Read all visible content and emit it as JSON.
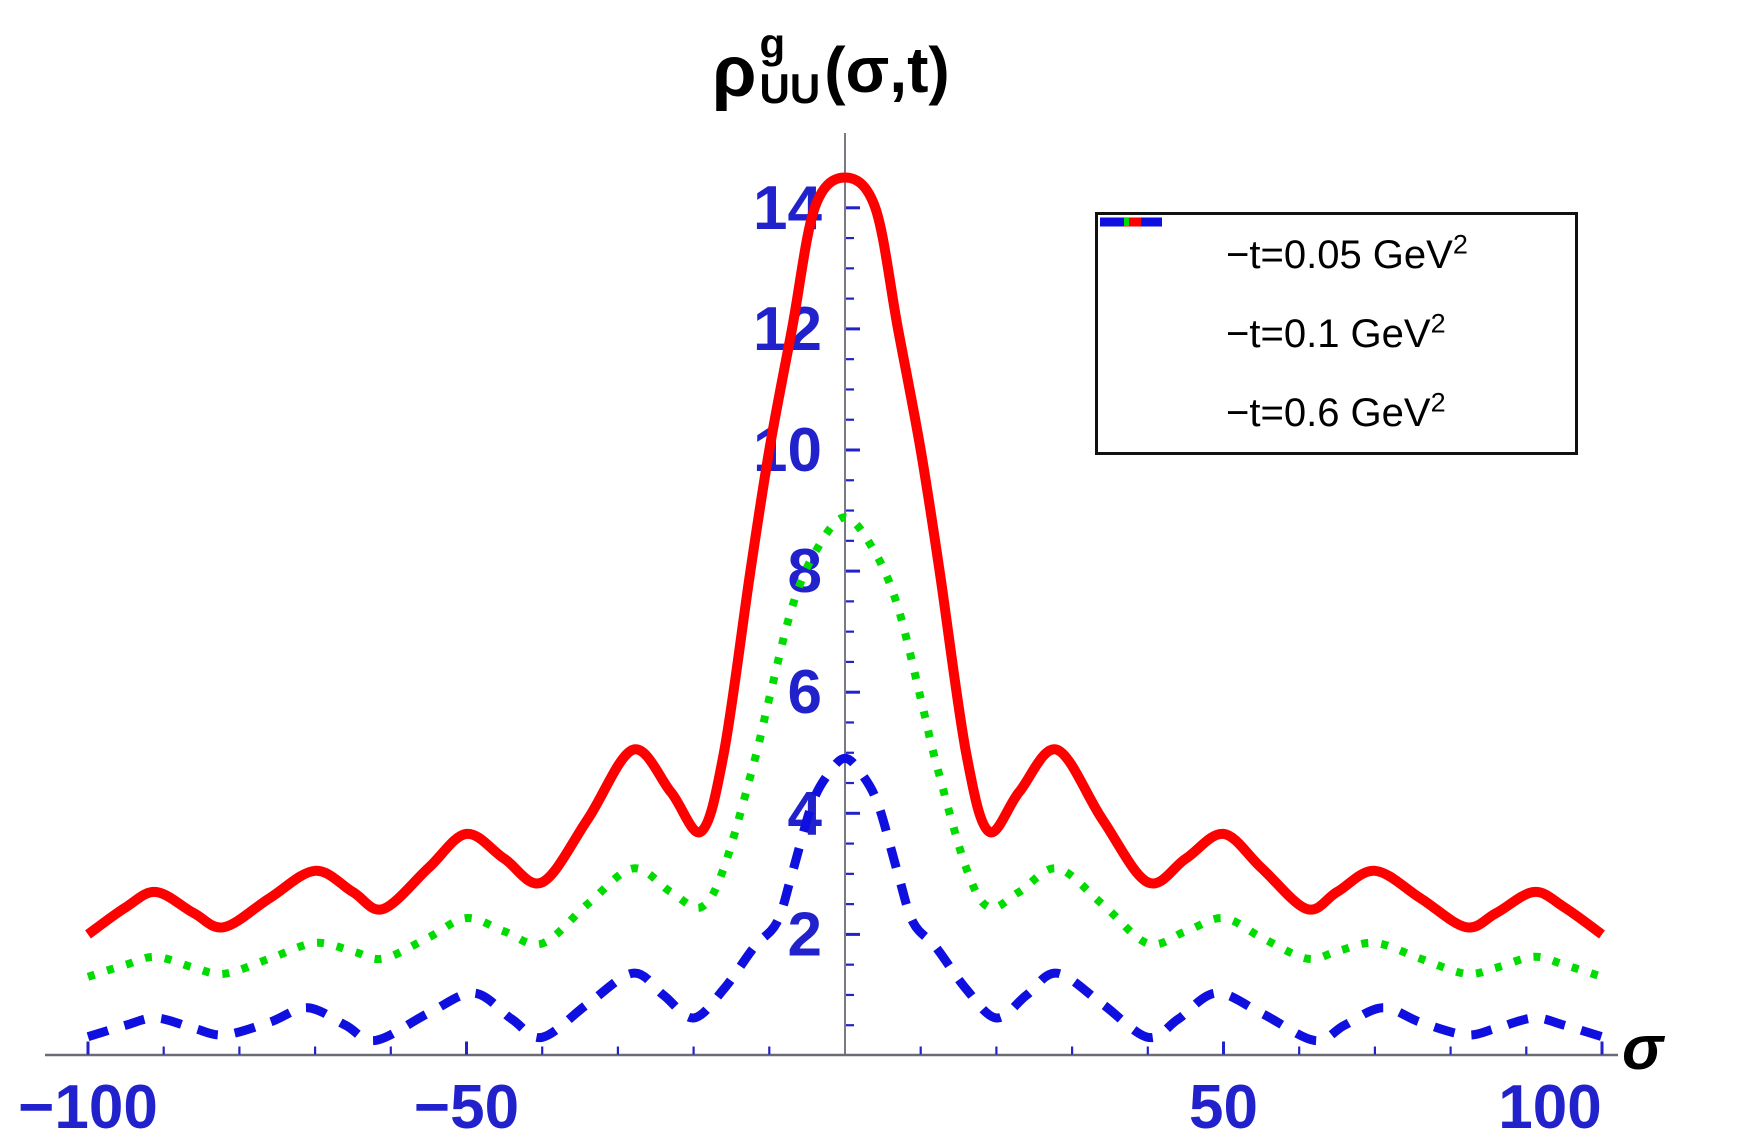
{
  "title": {
    "rho": "ρ",
    "superscript": "g",
    "subscript": "UU",
    "args": "(σ,t)"
  },
  "colors": {
    "red_curve": "#FF0000",
    "green_curve": "#00DC00",
    "blue_curve": "#0F0FE0",
    "tick_label_blue": "#2222CC",
    "axis_gray": "#6b6b74",
    "title_black": "#000000",
    "legend_border": "#111111"
  },
  "legend": {
    "items": [
      {
        "label": "−t=0.05 GeV",
        "sup": "2",
        "color": "#FF0000",
        "style": "solid"
      },
      {
        "label": "−t=0.1 GeV",
        "sup": "2",
        "color": "#00DC00",
        "style": "dotted"
      },
      {
        "label": "−t=0.6 GeV",
        "sup": "2",
        "color": "#0F0FE0",
        "style": "dashed"
      }
    ]
  },
  "chart_data": {
    "type": "line",
    "title": "ρ_UU^g(σ,t)",
    "xlabel": "σ",
    "ylabel": "",
    "xlim": [
      -100,
      100
    ],
    "ylim": [
      0,
      15.2
    ],
    "grid": false,
    "legend_position": "upper right",
    "x_tick_step": 10,
    "x_tick_labels": [
      {
        "text": "−100",
        "sigma": -100,
        "dx": 0
      },
      {
        "text": "−50",
        "sigma": -50,
        "dx": 0
      },
      {
        "text": "50",
        "sigma": 50,
        "dx": 0
      },
      {
        "text": "100",
        "sigma": 100,
        "dx": -52
      }
    ],
    "y_major_ticks": [
      2,
      4,
      6,
      8,
      10,
      12,
      14
    ],
    "y_minor_step": 0.5,
    "series": [
      {
        "name": "−t=0.05 GeV^2",
        "color": "#FF0000",
        "style": "solid",
        "peak": 14.5,
        "points": [
          [
            -100,
            2.0
          ],
          [
            -95,
            2.45
          ],
          [
            -91,
            2.7
          ],
          [
            -86,
            2.35
          ],
          [
            -82,
            2.12
          ],
          [
            -76,
            2.6
          ],
          [
            -70,
            3.05
          ],
          [
            -65,
            2.7
          ],
          [
            -61,
            2.42
          ],
          [
            -55,
            3.1
          ],
          [
            -50,
            3.66
          ],
          [
            -45,
            3.25
          ],
          [
            -40,
            2.86
          ],
          [
            -34,
            3.9
          ],
          [
            -28,
            5.05
          ],
          [
            -23,
            4.35
          ],
          [
            -19,
            3.7
          ],
          [
            -16,
            5.0
          ],
          [
            -12.5,
            8.0
          ],
          [
            -10,
            10.0
          ],
          [
            -7,
            12.0
          ],
          [
            -4,
            14.0
          ],
          [
            0,
            14.5
          ],
          [
            4,
            14.0
          ],
          [
            7,
            12.0
          ],
          [
            10,
            10.0
          ],
          [
            12.5,
            8.0
          ],
          [
            16,
            5.0
          ],
          [
            19,
            3.7
          ],
          [
            23,
            4.35
          ],
          [
            28,
            5.05
          ],
          [
            34,
            3.9
          ],
          [
            40,
            2.86
          ],
          [
            45,
            3.25
          ],
          [
            50,
            3.66
          ],
          [
            55,
            3.1
          ],
          [
            61,
            2.42
          ],
          [
            65,
            2.7
          ],
          [
            70,
            3.05
          ],
          [
            76,
            2.6
          ],
          [
            82,
            2.12
          ],
          [
            86,
            2.35
          ],
          [
            91,
            2.7
          ],
          [
            95,
            2.45
          ],
          [
            100,
            2.0
          ]
        ]
      },
      {
        "name": "−t=0.1 GeV^2",
        "color": "#00DC00",
        "style": "dotted",
        "peak": 8.89,
        "points": [
          [
            -100,
            1.3
          ],
          [
            -95,
            1.5
          ],
          [
            -91,
            1.63
          ],
          [
            -86,
            1.45
          ],
          [
            -82,
            1.35
          ],
          [
            -76,
            1.6
          ],
          [
            -70,
            1.86
          ],
          [
            -65,
            1.72
          ],
          [
            -61,
            1.6
          ],
          [
            -55,
            1.95
          ],
          [
            -50,
            2.27
          ],
          [
            -45,
            2.05
          ],
          [
            -40,
            1.85
          ],
          [
            -34,
            2.5
          ],
          [
            -28,
            3.09
          ],
          [
            -23,
            2.7
          ],
          [
            -19,
            2.45
          ],
          [
            -16,
            3.1
          ],
          [
            -12,
            4.85
          ],
          [
            -10,
            5.9
          ],
          [
            -7,
            7.4
          ],
          [
            -4,
            8.3
          ],
          [
            0,
            8.89
          ],
          [
            4,
            8.3
          ],
          [
            7,
            7.4
          ],
          [
            10,
            5.9
          ],
          [
            12,
            4.85
          ],
          [
            16,
            3.1
          ],
          [
            19,
            2.45
          ],
          [
            23,
            2.7
          ],
          [
            28,
            3.09
          ],
          [
            34,
            2.5
          ],
          [
            40,
            1.85
          ],
          [
            45,
            2.05
          ],
          [
            50,
            2.27
          ],
          [
            55,
            1.95
          ],
          [
            61,
            1.6
          ],
          [
            65,
            1.72
          ],
          [
            70,
            1.86
          ],
          [
            76,
            1.6
          ],
          [
            82,
            1.35
          ],
          [
            86,
            1.45
          ],
          [
            91,
            1.63
          ],
          [
            95,
            1.5
          ],
          [
            100,
            1.3
          ]
        ]
      },
      {
        "name": "−t=0.6 GeV^2",
        "color": "#0F0FE0",
        "style": "dashed",
        "peak": 4.91,
        "points": [
          [
            -100,
            0.31
          ],
          [
            -95,
            0.5
          ],
          [
            -91,
            0.62
          ],
          [
            -86,
            0.45
          ],
          [
            -82,
            0.34
          ],
          [
            -76,
            0.55
          ],
          [
            -71,
            0.79
          ],
          [
            -66,
            0.5
          ],
          [
            -62,
            0.25
          ],
          [
            -55,
            0.7
          ],
          [
            -49,
            1.03
          ],
          [
            -44,
            0.6
          ],
          [
            -40,
            0.3
          ],
          [
            -34,
            0.85
          ],
          [
            -28,
            1.36
          ],
          [
            -24,
            1.0
          ],
          [
            -20,
            0.62
          ],
          [
            -16,
            1.1
          ],
          [
            -12,
            1.79
          ],
          [
            -9,
            2.2
          ],
          [
            -7,
            3.0
          ],
          [
            -4.5,
            4.1
          ],
          [
            -2.5,
            4.6
          ],
          [
            0,
            4.91
          ],
          [
            2.5,
            4.6
          ],
          [
            4.5,
            4.1
          ],
          [
            7,
            3.0
          ],
          [
            9,
            2.2
          ],
          [
            12,
            1.79
          ],
          [
            16,
            1.1
          ],
          [
            20,
            0.62
          ],
          [
            24,
            1.0
          ],
          [
            28,
            1.36
          ],
          [
            34,
            0.85
          ],
          [
            40,
            0.3
          ],
          [
            44,
            0.6
          ],
          [
            49,
            1.03
          ],
          [
            55,
            0.7
          ],
          [
            62,
            0.25
          ],
          [
            66,
            0.5
          ],
          [
            71,
            0.79
          ],
          [
            76,
            0.55
          ],
          [
            82,
            0.34
          ],
          [
            86,
            0.45
          ],
          [
            91,
            0.62
          ],
          [
            95,
            0.5
          ],
          [
            100,
            0.31
          ]
        ]
      }
    ]
  }
}
